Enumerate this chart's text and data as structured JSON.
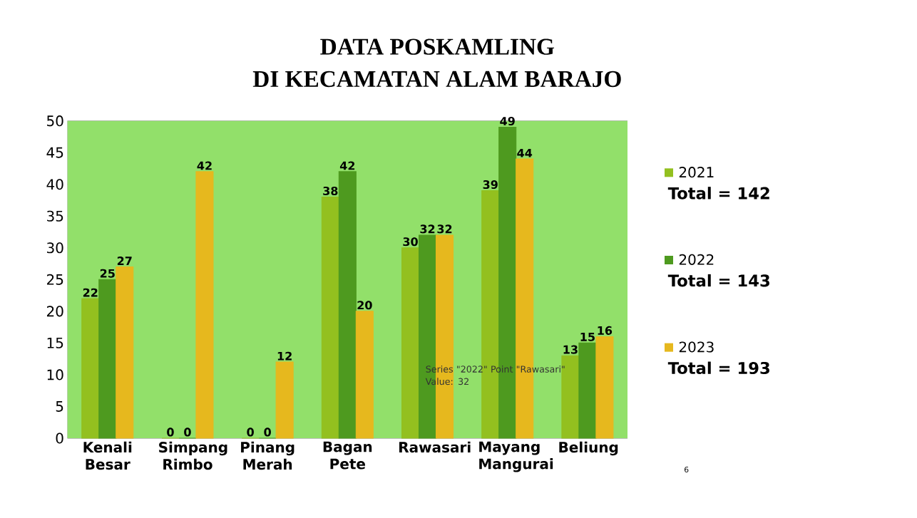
{
  "chart_data": {
    "type": "bar",
    "title": "DATA POSKAMLING",
    "subtitle": "DI KECAMATAN ALAM BARAJO",
    "categories": [
      "Kenali Besar",
      "Simpang Rimbo",
      "Pinang Merah",
      "Bagan Pete",
      "Rawasari",
      "Mayang Mangurai",
      "Beliung"
    ],
    "series": [
      {
        "name": "2021",
        "color": "#93c01f",
        "values": [
          22,
          0,
          0,
          38,
          30,
          39,
          13
        ]
      },
      {
        "name": "2022",
        "color": "#4e9a1f",
        "values": [
          25,
          0,
          0,
          42,
          32,
          49,
          15
        ]
      },
      {
        "name": "2023",
        "color": "#e6b81e",
        "values": [
          27,
          42,
          12,
          20,
          32,
          44,
          16
        ]
      }
    ],
    "ylim": [
      0,
      50
    ],
    "yticks": [
      0,
      5,
      10,
      15,
      20,
      25,
      30,
      35,
      40,
      45,
      50
    ],
    "grid": "y",
    "legend": "right",
    "data_labels": true,
    "annotations": [
      "Total = 142",
      "Total = 143",
      "Total = 193",
      "Series \"2022\" Point \"Rawasari\" Value: 32",
      "6"
    ]
  }
}
